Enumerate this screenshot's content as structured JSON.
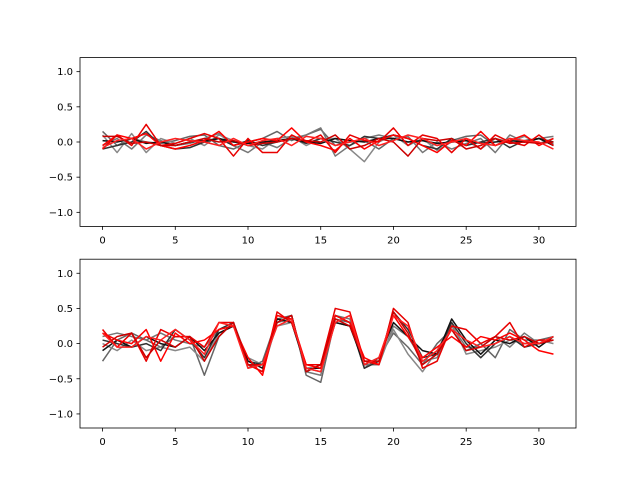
{
  "chart_data": [
    {
      "type": "line",
      "title": "",
      "xlabel": "",
      "ylabel": "",
      "xlim": [
        -1.55,
        32.55
      ],
      "ylim": [
        -1.2,
        1.2
      ],
      "xticks": [
        0,
        5,
        10,
        15,
        20,
        25,
        30
      ],
      "yticks": [
        -1.0,
        -0.5,
        0.0,
        0.5,
        1.0
      ],
      "xtick_labels": [
        "0",
        "5",
        "10",
        "15",
        "20",
        "25",
        "30"
      ],
      "ytick_labels": [
        "−1.0",
        "−0.5",
        "0.0",
        "0.5",
        "1.0"
      ],
      "grid": false,
      "x": [
        0,
        1,
        2,
        3,
        4,
        5,
        6,
        7,
        8,
        9,
        10,
        11,
        12,
        13,
        14,
        15,
        16,
        17,
        18,
        19,
        20,
        21,
        22,
        23,
        24,
        25,
        26,
        27,
        28,
        29,
        30,
        31
      ],
      "series": [
        {
          "color": "#666666",
          "values": [
            0.15,
            -0.05,
            0.05,
            0.0,
            -0.02,
            0.02,
            0.08,
            0.1,
            -0.05,
            -0.1,
            0.0,
            0.05,
            0.15,
            0.02,
            0.1,
            0.18,
            -0.05,
            0.0,
            0.02,
            -0.1,
            0.05,
            0.0,
            0.02,
            -0.05,
            0.02,
            0.08,
            0.1,
            -0.05,
            0.05,
            0.0,
            0.05,
            -0.03
          ]
        },
        {
          "color": "#777777",
          "values": [
            -0.05,
            0.05,
            -0.1,
            0.1,
            0.02,
            -0.05,
            -0.02,
            0.05,
            0.12,
            -0.05,
            -0.15,
            0.0,
            -0.08,
            0.05,
            0.1,
            0.2,
            -0.2,
            -0.05,
            0.05,
            0.1,
            0.05,
            0.08,
            -0.15,
            0.0,
            -0.1,
            -0.02,
            0.05,
            -0.15,
            0.1,
            0.0,
            0.05,
            0.08
          ]
        },
        {
          "color": "#888888",
          "values": [
            0.1,
            -0.15,
            0.12,
            -0.15,
            0.05,
            -0.02,
            0.05,
            -0.05,
            0.1,
            0.02,
            -0.05,
            -0.1,
            0.05,
            0.08,
            -0.05,
            0.05,
            0.05,
            -0.1,
            -0.28,
            0.0,
            0.1,
            -0.05,
            0.05,
            -0.12,
            0.0,
            0.02,
            -0.1,
            0.05,
            0.0,
            0.08,
            -0.02,
            0.05
          ]
        },
        {
          "color": "#333333",
          "values": [
            -0.1,
            -0.05,
            0.0,
            0.15,
            -0.05,
            -0.1,
            -0.08,
            0.0,
            0.05,
            -0.05,
            0.02,
            -0.05,
            0.0,
            0.05,
            -0.02,
            0.05,
            0.0,
            -0.05,
            0.08,
            0.05,
            0.1,
            0.05,
            -0.05,
            -0.1,
            0.05,
            -0.05,
            0.0,
            0.05,
            -0.08,
            0.02,
            0.05,
            0.0
          ]
        },
        {
          "color": "#111111",
          "values": [
            0.02,
            0.0,
            0.05,
            -0.02,
            0.0,
            -0.05,
            0.0,
            0.02,
            0.05,
            0.0,
            -0.02,
            0.0,
            0.02,
            0.05,
            0.0,
            -0.02,
            0.05,
            0.02,
            0.0,
            0.05,
            0.05,
            0.0,
            0.02,
            -0.02,
            0.0,
            0.02,
            -0.02,
            0.0,
            0.02,
            0.0,
            0.05,
            -0.05
          ]
        },
        {
          "color": "#e80000",
          "values": [
            -0.1,
            0.1,
            -0.05,
            0.25,
            -0.05,
            -0.02,
            0.05,
            0.12,
            0.05,
            -0.2,
            0.05,
            -0.15,
            -0.15,
            0.1,
            0.0,
            0.1,
            -0.15,
            0.1,
            0.02,
            0.0,
            0.2,
            -0.05,
            0.1,
            0.05,
            -0.15,
            0.05,
            -0.1,
            0.1,
            0.0,
            -0.05,
            0.1,
            -0.05
          ]
        },
        {
          "color": "#ff0000",
          "values": [
            -0.05,
            0.1,
            0.05,
            0.12,
            -0.05,
            -0.1,
            -0.05,
            0.02,
            0.15,
            -0.05,
            0.0,
            0.05,
            0.02,
            0.2,
            0.0,
            -0.05,
            -0.12,
            0.05,
            -0.1,
            0.02,
            0.1,
            0.05,
            -0.05,
            -0.15,
            0.02,
            -0.05,
            0.15,
            -0.05,
            0.02,
            0.1,
            -0.05,
            0.05
          ]
        },
        {
          "color": "#cc0000",
          "values": [
            0.08,
            0.08,
            -0.02,
            0.0,
            -0.05,
            -0.05,
            0.0,
            0.05,
            0.0,
            0.02,
            -0.05,
            -0.02,
            0.0,
            0.05,
            0.02,
            0.0,
            0.1,
            -0.1,
            -0.05,
            0.05,
            0.0,
            -0.2,
            0.05,
            0.02,
            0.05,
            -0.1,
            -0.05,
            0.05,
            -0.02,
            0.0,
            -0.02,
            0.0
          ]
        },
        {
          "color": "#ff2020",
          "values": [
            -0.08,
            0.02,
            0.05,
            -0.1,
            0.0,
            0.05,
            0.02,
            0.0,
            -0.05,
            0.05,
            -0.05,
            0.02,
            0.05,
            -0.05,
            0.08,
            0.05,
            -0.05,
            0.0,
            0.05,
            -0.05,
            0.02,
            0.1,
            0.05,
            -0.05,
            0.0,
            0.05,
            -0.02,
            -0.05,
            0.05,
            0.02,
            0.0,
            -0.1
          ]
        }
      ]
    },
    {
      "type": "line",
      "title": "",
      "xlabel": "",
      "ylabel": "",
      "xlim": [
        -1.55,
        32.55
      ],
      "ylim": [
        -1.2,
        1.2
      ],
      "xticks": [
        0,
        5,
        10,
        15,
        20,
        25,
        30
      ],
      "yticks": [
        -1.0,
        -0.5,
        0.0,
        0.5,
        1.0
      ],
      "xtick_labels": [
        "0",
        "5",
        "10",
        "15",
        "20",
        "25",
        "30"
      ],
      "ytick_labels": [
        "−1.0",
        "−0.5",
        "0.0",
        "0.5",
        "1.0"
      ],
      "grid": false,
      "x": [
        0,
        1,
        2,
        3,
        4,
        5,
        6,
        7,
        8,
        9,
        10,
        11,
        12,
        13,
        14,
        15,
        16,
        17,
        18,
        19,
        20,
        21,
        22,
        23,
        24,
        25,
        26,
        27,
        28,
        29,
        30,
        31
      ],
      "series": [
        {
          "color": "#666666",
          "values": [
            -0.25,
            0.05,
            0.15,
            0.05,
            -0.05,
            0.1,
            0.1,
            -0.45,
            0.1,
            0.3,
            -0.35,
            -0.25,
            0.35,
            0.4,
            -0.45,
            -0.55,
            0.35,
            0.3,
            -0.35,
            -0.2,
            0.15,
            -0.05,
            -0.3,
            0.0,
            0.2,
            -0.1,
            0.0,
            -0.2,
            0.2,
            0.05,
            0.05,
            0.1
          ]
        },
        {
          "color": "#777777",
          "values": [
            0.1,
            0.15,
            0.1,
            0.05,
            0.15,
            0.05,
            0.0,
            -0.05,
            0.2,
            0.3,
            -0.3,
            -0.4,
            0.3,
            0.35,
            -0.4,
            -0.45,
            0.4,
            0.35,
            -0.3,
            -0.3,
            0.25,
            0.1,
            -0.25,
            -0.2,
            0.25,
            -0.05,
            -0.05,
            0.1,
            -0.05,
            0.15,
            0.0,
            0.05
          ]
        },
        {
          "color": "#888888",
          "values": [
            0.0,
            -0.1,
            0.05,
            -0.1,
            -0.05,
            -0.1,
            -0.05,
            -0.25,
            0.15,
            0.25,
            -0.2,
            -0.3,
            0.25,
            0.3,
            -0.35,
            -0.4,
            0.3,
            0.25,
            -0.25,
            -0.25,
            0.2,
            -0.15,
            -0.4,
            -0.1,
            0.3,
            -0.15,
            -0.1,
            -0.05,
            0.05,
            0.0,
            0.05,
            0.0
          ]
        },
        {
          "color": "#333333",
          "values": [
            0.05,
            0.0,
            -0.05,
            0.0,
            -0.1,
            0.2,
            0.05,
            -0.2,
            0.2,
            0.3,
            -0.25,
            -0.3,
            0.3,
            0.4,
            -0.4,
            -0.3,
            0.4,
            0.3,
            -0.35,
            -0.25,
            0.45,
            0.2,
            -0.2,
            -0.15,
            0.3,
            0.0,
            -0.2,
            0.0,
            0.1,
            -0.05,
            0.0,
            0.05
          ]
        },
        {
          "color": "#111111",
          "values": [
            -0.1,
            0.05,
            -0.05,
            0.1,
            0.0,
            -0.05,
            0.1,
            -0.1,
            0.15,
            0.25,
            -0.25,
            -0.35,
            0.35,
            0.3,
            -0.35,
            -0.35,
            0.3,
            0.25,
            -0.3,
            -0.2,
            0.3,
            0.1,
            -0.1,
            -0.15,
            0.35,
            0.05,
            -0.15,
            0.05,
            0.0,
            0.1,
            -0.05,
            0.1
          ]
        },
        {
          "color": "#e80000",
          "values": [
            0.2,
            -0.05,
            0.15,
            -0.25,
            0.2,
            0.1,
            0.1,
            -0.05,
            0.3,
            0.3,
            -0.3,
            -0.4,
            0.45,
            0.3,
            -0.3,
            -0.3,
            0.5,
            0.45,
            -0.25,
            -0.3,
            0.5,
            0.3,
            -0.35,
            -0.25,
            0.25,
            0.2,
            0.0,
            0.1,
            0.3,
            -0.05,
            0.05,
            0.05
          ]
        },
        {
          "color": "#ff0000",
          "values": [
            0.15,
            0.05,
            0.0,
            0.2,
            -0.25,
            0.15,
            0.0,
            0.05,
            0.2,
            0.25,
            -0.2,
            -0.45,
            0.4,
            0.35,
            -0.3,
            -0.35,
            0.4,
            0.3,
            -0.2,
            -0.3,
            0.4,
            0.1,
            -0.2,
            -0.05,
            0.1,
            -0.05,
            0.1,
            0.05,
            0.15,
            0.05,
            -0.1,
            -0.15
          ]
        },
        {
          "color": "#cc0000",
          "values": [
            -0.05,
            0.1,
            0.15,
            -0.2,
            0.05,
            -0.05,
            0.1,
            -0.25,
            0.1,
            0.3,
            -0.3,
            -0.3,
            0.3,
            0.4,
            -0.4,
            -0.3,
            0.35,
            0.25,
            -0.25,
            -0.25,
            0.45,
            0.15,
            -0.3,
            -0.15,
            0.2,
            -0.1,
            -0.05,
            0.1,
            0.05,
            0.1,
            0.0,
            0.05
          ]
        },
        {
          "color": "#ff2020",
          "values": [
            0.15,
            -0.05,
            -0.05,
            0.1,
            0.05,
            0.2,
            0.05,
            -0.15,
            0.3,
            0.25,
            -0.35,
            -0.3,
            0.25,
            0.35,
            -0.35,
            -0.4,
            0.3,
            0.4,
            -0.3,
            -0.2,
            0.4,
            0.25,
            -0.25,
            -0.1,
            0.2,
            0.05,
            -0.05,
            0.0,
            0.1,
            0.0,
            0.0,
            0.1
          ]
        }
      ]
    }
  ]
}
